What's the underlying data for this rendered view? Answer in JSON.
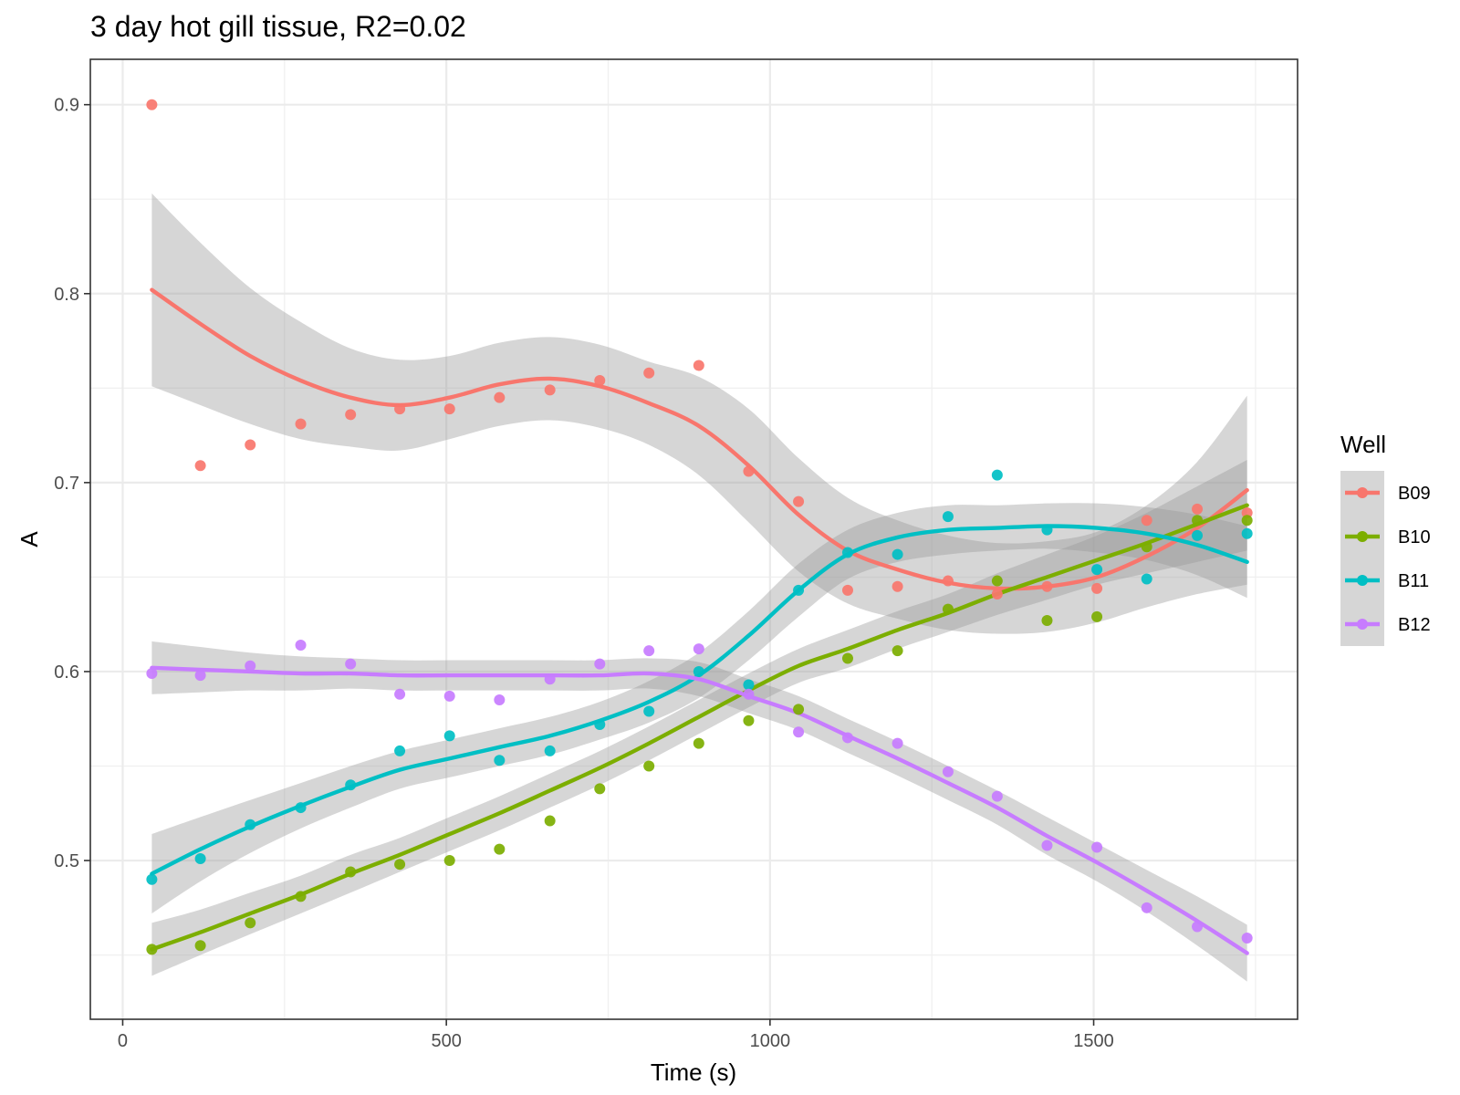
{
  "chart_data": {
    "type": "scatter",
    "title": "3 day hot gill tissue, R2=0.02",
    "xlabel": "Time (s)",
    "ylabel": "A",
    "xlim": [
      -50,
      1815
    ],
    "ylim": [
      0.416,
      0.924
    ],
    "x_ticks": [
      0,
      500,
      1000,
      1500
    ],
    "x_tick_labels": [
      "0",
      "500",
      "1000",
      "1500"
    ],
    "y_ticks": [
      0.5,
      0.6,
      0.7,
      0.8,
      0.9
    ],
    "y_tick_labels": [
      "0.5",
      "0.6",
      "0.7",
      "0.8",
      "0.9"
    ],
    "x_minor_ticks": [
      250,
      750,
      1250,
      1750
    ],
    "y_minor_ticks": [
      0.45,
      0.55,
      0.65,
      0.75,
      0.85
    ],
    "grid": true,
    "legend": {
      "title": "Well",
      "position": "right"
    },
    "x": [
      45,
      120,
      197,
      275,
      352,
      428,
      505,
      582,
      660,
      737,
      813,
      890,
      967,
      1044,
      1120,
      1197,
      1275,
      1351,
      1428,
      1505,
      1582,
      1660,
      1737
    ],
    "series": [
      {
        "name": "B09",
        "color": "#F8766D",
        "points": [
          0.9,
          0.709,
          0.72,
          0.731,
          0.736,
          0.739,
          0.739,
          0.745,
          0.749,
          0.754,
          0.758,
          0.762,
          0.706,
          0.69,
          0.643,
          0.645,
          0.648,
          0.641,
          0.645,
          0.644,
          0.68,
          0.686,
          0.684
        ],
        "fit": [
          0.802,
          0.784,
          0.767,
          0.754,
          0.745,
          0.741,
          0.745,
          0.752,
          0.755,
          0.751,
          0.742,
          0.73,
          0.709,
          0.683,
          0.664,
          0.654,
          0.647,
          0.644,
          0.645,
          0.65,
          0.661,
          0.676,
          0.696
        ],
        "ci_width": [
          0.051,
          0.043,
          0.036,
          0.031,
          0.026,
          0.024,
          0.022,
          0.022,
          0.022,
          0.022,
          0.022,
          0.026,
          0.03,
          0.03,
          0.028,
          0.026,
          0.025,
          0.024,
          0.024,
          0.024,
          0.027,
          0.035,
          0.05
        ]
      },
      {
        "name": "B10",
        "color": "#7CAE00",
        "points": [
          0.453,
          0.455,
          0.467,
          0.481,
          0.494,
          0.498,
          0.5,
          0.506,
          0.521,
          0.538,
          0.55,
          0.562,
          0.574,
          0.58,
          0.607,
          0.611,
          0.633,
          0.648,
          0.627,
          0.629,
          0.666,
          0.68,
          0.68
        ],
        "fit": [
          0.453,
          0.462,
          0.472,
          0.482,
          0.493,
          0.503,
          0.514,
          0.525,
          0.537,
          0.549,
          0.562,
          0.576,
          0.59,
          0.603,
          0.612,
          0.622,
          0.631,
          0.641,
          0.65,
          0.659,
          0.668,
          0.678,
          0.688
        ],
        "ci_width": [
          0.014,
          0.012,
          0.011,
          0.01,
          0.01,
          0.009,
          0.009,
          0.009,
          0.009,
          0.009,
          0.009,
          0.009,
          0.009,
          0.009,
          0.01,
          0.01,
          0.01,
          0.011,
          0.012,
          0.013,
          0.016,
          0.02,
          0.024
        ]
      },
      {
        "name": "B11",
        "color": "#00BFC4",
        "points": [
          0.49,
          0.501,
          0.519,
          0.528,
          0.54,
          0.558,
          0.566,
          0.553,
          0.558,
          0.572,
          0.579,
          0.6,
          0.593,
          0.643,
          0.663,
          0.662,
          0.682,
          0.704,
          0.675,
          0.654,
          0.649,
          0.672,
          0.673
        ],
        "fit": [
          0.493,
          0.506,
          0.518,
          0.529,
          0.539,
          0.548,
          0.554,
          0.56,
          0.566,
          0.574,
          0.584,
          0.598,
          0.619,
          0.643,
          0.662,
          0.671,
          0.675,
          0.676,
          0.677,
          0.676,
          0.673,
          0.667,
          0.658
        ],
        "ci_width": [
          0.021,
          0.017,
          0.014,
          0.012,
          0.011,
          0.01,
          0.01,
          0.01,
          0.01,
          0.01,
          0.011,
          0.012,
          0.013,
          0.014,
          0.013,
          0.013,
          0.013,
          0.012,
          0.012,
          0.013,
          0.014,
          0.016,
          0.019
        ]
      },
      {
        "name": "B12",
        "color": "#C77CFF",
        "points": [
          0.599,
          0.598,
          0.603,
          0.614,
          0.604,
          0.588,
          0.587,
          0.585,
          0.596,
          0.604,
          0.611,
          0.612,
          0.588,
          0.568,
          0.565,
          0.562,
          0.547,
          0.534,
          0.508,
          0.507,
          0.475,
          0.465,
          0.459
        ],
        "fit": [
          0.602,
          0.601,
          0.6,
          0.599,
          0.599,
          0.598,
          0.598,
          0.598,
          0.598,
          0.598,
          0.599,
          0.596,
          0.587,
          0.578,
          0.566,
          0.554,
          0.541,
          0.528,
          0.513,
          0.499,
          0.484,
          0.468,
          0.451
        ],
        "ci_width": [
          0.014,
          0.012,
          0.01,
          0.009,
          0.008,
          0.008,
          0.008,
          0.008,
          0.008,
          0.008,
          0.008,
          0.009,
          0.009,
          0.009,
          0.009,
          0.009,
          0.009,
          0.009,
          0.01,
          0.01,
          0.011,
          0.013,
          0.015
        ]
      }
    ]
  }
}
